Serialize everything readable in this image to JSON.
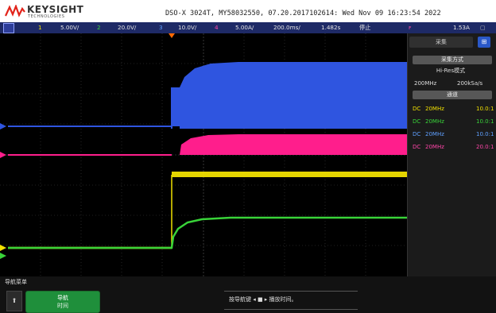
{
  "header": {
    "brand": "KEYSIGHT",
    "brand_sub": "TECHNOLOGIES",
    "device_info": "DSO-X 3024T, MY58032550, 07.20.2017102614: Wed Nov 09 16:23:54 2022"
  },
  "channel_bar": {
    "ch1": {
      "num": "1",
      "scale": "5.00V/"
    },
    "ch2": {
      "num": "2",
      "scale": "20.0V/"
    },
    "ch3": {
      "num": "3",
      "scale": "10.0V/"
    },
    "ch4": {
      "num": "4",
      "scale": "5.00A/"
    },
    "timebase": "200.0ms/",
    "delay": "1.482s",
    "run_state": "停止",
    "trigger_level": "1.53A"
  },
  "side_panel": {
    "tab_label": "采集",
    "tab_icon": "⊞",
    "acq_mode_btn": "采集方式",
    "acq_mode_value": "Hi-Res模式",
    "bandwidth": "200MHz",
    "sample_rate": "200kSa/s",
    "channels_btn": "通道",
    "rows": [
      {
        "coupling": "DC",
        "bw": "20MHz",
        "probe": "10.0:1",
        "color": "#f1e000"
      },
      {
        "coupling": "DC",
        "bw": "20MHz",
        "probe": "10.0:1",
        "color": "#39d339"
      },
      {
        "coupling": "DC",
        "bw": "20MHz",
        "probe": "10.0:1",
        "color": "#5fa0ff"
      },
      {
        "coupling": "DC",
        "bw": "20MHz",
        "probe": "20.0:1",
        "color": "#ff45a8"
      }
    ]
  },
  "footer": {
    "title": "导航菜单",
    "nav_button_line1": "导航",
    "nav_button_line2": "时间",
    "hint": "按导航键 ◂ ■ ▸ 播放时间。"
  },
  "colors": {
    "ch1": "#f1e000",
    "ch2": "#39d339",
    "ch3": "#2f55e0",
    "ch4": "#ff1e8c"
  }
}
